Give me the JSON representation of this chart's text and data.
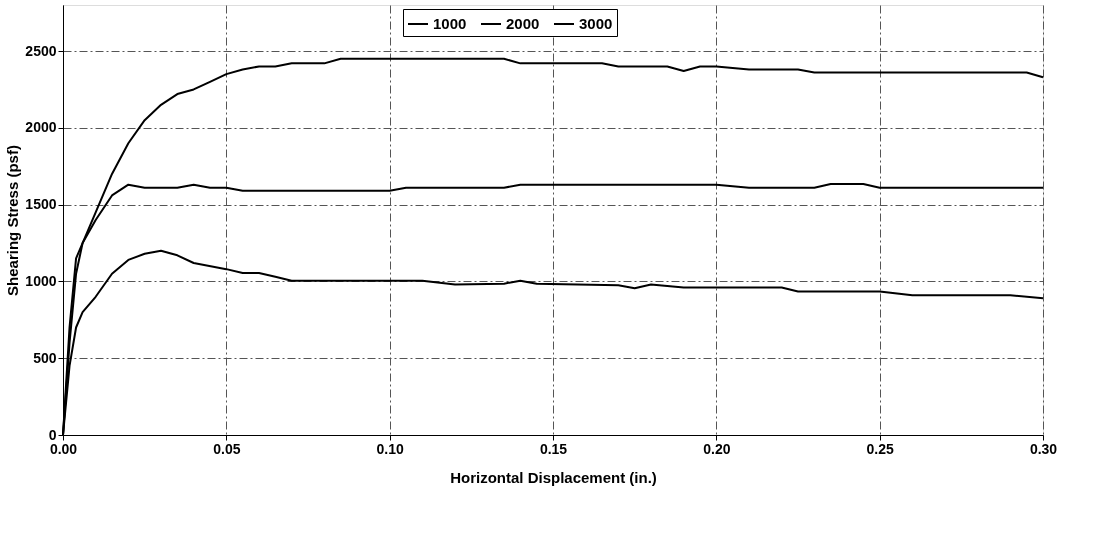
{
  "chart_data": {
    "type": "line",
    "xlabel": "Horizontal Displacement (in.)",
    "ylabel": "Shearing Stress (psf)",
    "xlim": [
      0,
      0.3
    ],
    "xticks": [
      {
        "value": 0,
        "label": "0.00"
      },
      {
        "value": 0.05,
        "label": "0.05"
      },
      {
        "value": 0.1,
        "label": "0.10"
      },
      {
        "value": 0.15,
        "label": "0.15"
      },
      {
        "value": 0.2,
        "label": "0.20"
      },
      {
        "value": 0.25,
        "label": "0.25"
      },
      {
        "value": 0.3,
        "label": "0.30"
      }
    ],
    "ylim": [
      0,
      2800
    ],
    "yticks": [
      0,
      500,
      1000,
      1500,
      2000,
      2500
    ],
    "grid": true,
    "legend": "top",
    "line_style": "solid",
    "marker": "none",
    "series": [
      {
        "name": "1000",
        "color": "#000000",
        "x": [
          0,
          0.002,
          0.004,
          0.006,
          0.01,
          0.015,
          0.02,
          0.025,
          0.03,
          0.035,
          0.04,
          0.05,
          0.055,
          0.06,
          0.065,
          0.07,
          0.1,
          0.11,
          0.12,
          0.135,
          0.14,
          0.145,
          0.17,
          0.175,
          0.18,
          0.19,
          0.2,
          0.22,
          0.225,
          0.25,
          0.26,
          0.29,
          0.3
        ],
        "values": [
          0,
          450,
          700,
          800,
          900,
          1050,
          1140,
          1180,
          1200,
          1170,
          1120,
          1080,
          1055,
          1055,
          1030,
          1005,
          1005,
          1005,
          980,
          985,
          1005,
          985,
          975,
          955,
          980,
          960,
          960,
          960,
          935,
          935,
          910,
          910,
          890
        ]
      },
      {
        "name": "2000",
        "color": "#000000",
        "x": [
          0,
          0.002,
          0.004,
          0.006,
          0.01,
          0.015,
          0.02,
          0.025,
          0.035,
          0.04,
          0.045,
          0.05,
          0.055,
          0.1,
          0.105,
          0.135,
          0.14,
          0.2,
          0.21,
          0.23,
          0.235,
          0.245,
          0.25,
          0.3
        ],
        "values": [
          0,
          600,
          1050,
          1250,
          1400,
          1560,
          1630,
          1610,
          1610,
          1630,
          1610,
          1610,
          1590,
          1590,
          1610,
          1610,
          1630,
          1630,
          1610,
          1610,
          1635,
          1635,
          1610,
          1610
        ]
      },
      {
        "name": "3000",
        "color": "#000000",
        "x": [
          0,
          0.002,
          0.004,
          0.006,
          0.01,
          0.015,
          0.02,
          0.025,
          0.03,
          0.035,
          0.04,
          0.045,
          0.05,
          0.055,
          0.06,
          0.065,
          0.07,
          0.08,
          0.085,
          0.135,
          0.14,
          0.165,
          0.17,
          0.185,
          0.19,
          0.195,
          0.2,
          0.21,
          0.225,
          0.23,
          0.295,
          0.3
        ],
        "values": [
          0,
          700,
          1150,
          1250,
          1450,
          1700,
          1900,
          2050,
          2150,
          2220,
          2250,
          2300,
          2350,
          2380,
          2400,
          2400,
          2420,
          2420,
          2450,
          2450,
          2420,
          2420,
          2400,
          2400,
          2370,
          2400,
          2400,
          2380,
          2380,
          2360,
          2360,
          2330
        ]
      }
    ]
  }
}
